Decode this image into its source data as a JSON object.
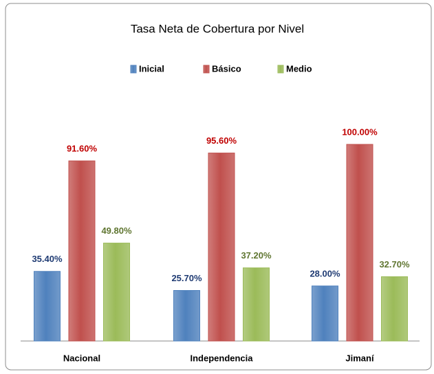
{
  "chart_data": {
    "type": "bar",
    "title": "Tasa Neta de Cobertura por Nivel",
    "categories": [
      "Nacional",
      "Independencia",
      "Jimaní"
    ],
    "series": [
      {
        "name": "Inicial",
        "color": "#4f81bd",
        "label_color": "#1f3b73",
        "values": [
          35.4,
          25.7,
          28.0
        ],
        "value_labels": [
          "35.40%",
          "25.70%",
          "28.00%"
        ]
      },
      {
        "name": "Básico",
        "color": "#c0504d",
        "label_color": "#c00000",
        "values": [
          91.6,
          95.6,
          100.0
        ],
        "value_labels": [
          "91.60%",
          "95.60%",
          "100.00%"
        ]
      },
      {
        "name": "Medio",
        "color": "#9bbb59",
        "label_color": "#5f7530",
        "values": [
          49.8,
          37.2,
          32.7
        ],
        "value_labels": [
          "49.80%",
          "37.20%",
          "32.70%"
        ]
      }
    ],
    "legend": "top"
  }
}
